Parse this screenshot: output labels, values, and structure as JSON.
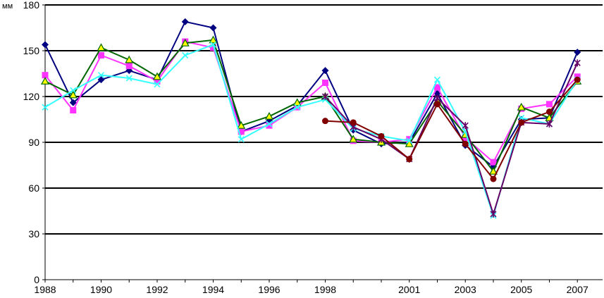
{
  "chart_data": {
    "type": "line",
    "ylabel": "мм",
    "ylim": [
      0,
      180
    ],
    "yticks": [
      0,
      30,
      60,
      90,
      120,
      150,
      180
    ],
    "xlim": [
      1988,
      2007.9
    ],
    "xtick_labels": [
      "1988",
      "1990",
      "1992",
      "1994",
      "1996",
      "1998",
      "2001",
      "2003",
      "2005",
      "2007"
    ],
    "x": [
      1988,
      1989,
      1990,
      1991,
      1992,
      1993,
      1994,
      1995,
      1996,
      1997,
      1998,
      1999,
      2000,
      2001,
      2002,
      2003,
      2004,
      2005,
      2006,
      2007
    ],
    "grid": "horizontal",
    "legend": "none",
    "series": [
      {
        "color": "#000080",
        "marker": "diamond",
        "values": [
          154,
          116,
          131,
          137,
          131,
          169,
          165,
          97,
          104,
          114,
          137,
          98,
          89,
          90,
          122,
          88,
          74,
          105,
          106,
          149
        ]
      },
      {
        "color": "#ff33ff",
        "marker": "square",
        "values": [
          134,
          111,
          147,
          140,
          130,
          156,
          152,
          97,
          101,
          113,
          129,
          91,
          90,
          92,
          126,
          93,
          77,
          112,
          115,
          133
        ]
      },
      {
        "color": "#006600",
        "marker": "triangle",
        "marker_fill": "#ffff00",
        "values": [
          130,
          121,
          152,
          144,
          133,
          155,
          157,
          101,
          107,
          116,
          120,
          92,
          90,
          89,
          117,
          95,
          71,
          113,
          106,
          130
        ]
      },
      {
        "color": "#33ffff",
        "marker": "x",
        "values": [
          113,
          124,
          134,
          132,
          128,
          147,
          154,
          92,
          102,
          113,
          118,
          99,
          94,
          91,
          131,
          97,
          42,
          106,
          102,
          131
        ]
      },
      {
        "color": "#660066",
        "marker": "star",
        "values": [
          null,
          null,
          null,
          null,
          null,
          null,
          null,
          null,
          null,
          null,
          120,
          100,
          92,
          79,
          119,
          101,
          43,
          103,
          102,
          142
        ]
      },
      {
        "color": "#800000",
        "marker": "circle",
        "values": [
          null,
          null,
          null,
          null,
          null,
          null,
          null,
          null,
          null,
          null,
          104,
          103,
          94,
          79,
          115,
          89,
          66,
          103,
          110,
          131
        ]
      }
    ]
  }
}
